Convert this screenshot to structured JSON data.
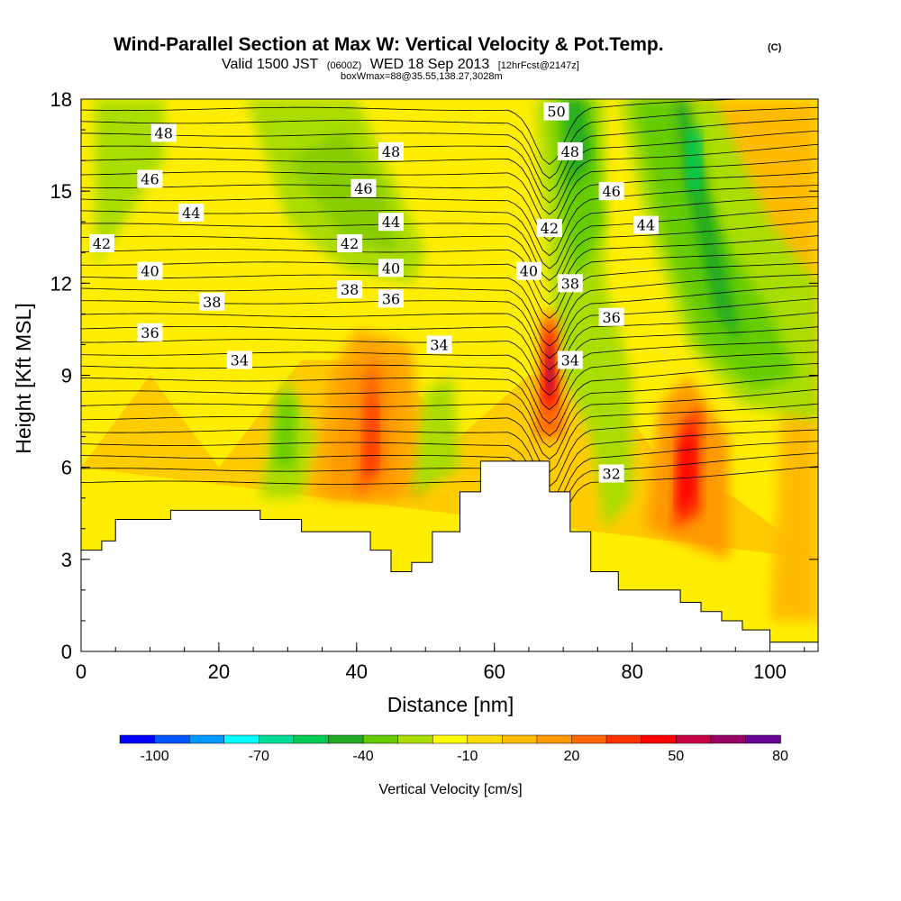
{
  "chart_data": {
    "type": "heatmap",
    "title": "Wind-Parallel Section at Max W: Vertical Velocity & Pot.Temp.",
    "title_mark": "(C)",
    "subtitle_parts": [
      "Valid 1500 JST",
      "(0600Z)",
      "WED 18 Sep 2013",
      "[12hrFcst@2147z]"
    ],
    "subtitle2": "boxWmax=88@35.55,138.27,3028m",
    "xlabel": "Distance [nm]",
    "ylabel": "Height [Kft MSL]",
    "xlim": [
      0,
      107
    ],
    "ylim": [
      0,
      18
    ],
    "x_ticks": [
      0,
      20,
      40,
      60,
      80,
      100
    ],
    "y_ticks": [
      0,
      3,
      6,
      9,
      12,
      15,
      18
    ],
    "colorbar": {
      "label": "Vertical Velocity [cm/s]",
      "tick_labels": [
        "-100",
        "-70",
        "-40",
        "-10",
        "20",
        "50",
        "80"
      ],
      "colors": [
        "#0000ff",
        "#0055ff",
        "#0099ff",
        "#00ffff",
        "#00dd99",
        "#00cc55",
        "#22aa22",
        "#66cc00",
        "#aadd00",
        "#ffff00",
        "#ffdd00",
        "#ffbb00",
        "#ff9900",
        "#ff6600",
        "#ff3300",
        "#ff0000",
        "#cc0044",
        "#990066",
        "#660099"
      ]
    },
    "terrain_kft": [
      [
        0,
        3.3
      ],
      [
        1,
        3.3
      ],
      [
        1,
        3.3
      ],
      [
        3,
        3.3
      ],
      [
        3,
        3.6
      ],
      [
        5,
        3.6
      ],
      [
        5,
        4.3
      ],
      [
        13,
        4.3
      ],
      [
        13,
        4.6
      ],
      [
        26,
        4.6
      ],
      [
        26,
        4.3
      ],
      [
        32,
        4.3
      ],
      [
        32,
        3.9
      ],
      [
        42,
        3.9
      ],
      [
        42,
        3.3
      ],
      [
        45,
        3.3
      ],
      [
        45,
        2.6
      ],
      [
        48,
        2.6
      ],
      [
        48,
        2.9
      ],
      [
        51,
        2.9
      ],
      [
        51,
        3.9
      ],
      [
        55,
        3.9
      ],
      [
        55,
        5.2
      ],
      [
        58,
        5.2
      ],
      [
        58,
        6.2
      ],
      [
        68,
        6.2
      ],
      [
        68,
        5.2
      ],
      [
        71,
        5.2
      ],
      [
        71,
        3.9
      ],
      [
        74,
        3.9
      ],
      [
        74,
        2.6
      ],
      [
        78,
        2.6
      ],
      [
        78,
        2.0
      ],
      [
        87,
        2.0
      ],
      [
        87,
        1.6
      ],
      [
        90,
        1.6
      ],
      [
        90,
        1.3
      ],
      [
        93,
        1.3
      ],
      [
        93,
        1.0
      ],
      [
        96,
        1.0
      ],
      [
        96,
        0.7
      ],
      [
        100,
        0.7
      ],
      [
        100,
        0.3
      ],
      [
        107,
        0.3
      ]
    ],
    "theta_contour_labels": [
      {
        "text": "50",
        "x": 69,
        "y": 17.6
      },
      {
        "text": "48",
        "x": 12,
        "y": 16.9
      },
      {
        "text": "48",
        "x": 45,
        "y": 16.3
      },
      {
        "text": "48",
        "x": 71,
        "y": 16.3
      },
      {
        "text": "46",
        "x": 10,
        "y": 15.4
      },
      {
        "text": "46",
        "x": 41,
        "y": 15.1
      },
      {
        "text": "46",
        "x": 77,
        "y": 15.0
      },
      {
        "text": "44",
        "x": 16,
        "y": 14.3
      },
      {
        "text": "44",
        "x": 45,
        "y": 14.0
      },
      {
        "text": "44",
        "x": 82,
        "y": 13.9
      },
      {
        "text": "42",
        "x": 3,
        "y": 13.3
      },
      {
        "text": "42",
        "x": 39,
        "y": 13.3
      },
      {
        "text": "42",
        "x": 68,
        "y": 13.8
      },
      {
        "text": "40",
        "x": 10,
        "y": 12.4
      },
      {
        "text": "40",
        "x": 45,
        "y": 12.5
      },
      {
        "text": "40",
        "x": 65,
        "y": 12.4
      },
      {
        "text": "38",
        "x": 19,
        "y": 11.4
      },
      {
        "text": "38",
        "x": 39,
        "y": 11.8
      },
      {
        "text": "38",
        "x": 71,
        "y": 12.0
      },
      {
        "text": "36",
        "x": 10,
        "y": 10.4
      },
      {
        "text": "36",
        "x": 45,
        "y": 11.5
      },
      {
        "text": "36",
        "x": 77,
        "y": 10.9
      },
      {
        "text": "34",
        "x": 23,
        "y": 9.5
      },
      {
        "text": "34",
        "x": 52,
        "y": 10.0
      },
      {
        "text": "34",
        "x": 71,
        "y": 9.5
      },
      {
        "text": "32",
        "x": 77,
        "y": 5.8
      }
    ]
  }
}
